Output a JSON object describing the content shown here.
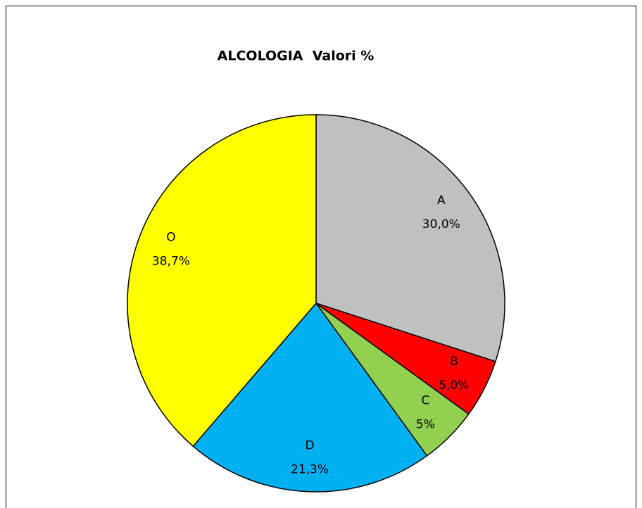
{
  "chart_data": {
    "type": "pie",
    "title": "ALCOLOGIA  Valori %",
    "categories": [
      "A",
      "B",
      "C",
      "D",
      "O"
    ],
    "values": [
      30.0,
      5.0,
      5,
      21.3,
      38.7
    ],
    "value_labels": [
      "30,0%",
      "5,0%",
      "5%",
      "21,3%",
      "38,7%"
    ],
    "colors": [
      "#c0c0c0",
      "#ff0000",
      "#92d050",
      "#00b0f0",
      "#ffff00"
    ]
  }
}
